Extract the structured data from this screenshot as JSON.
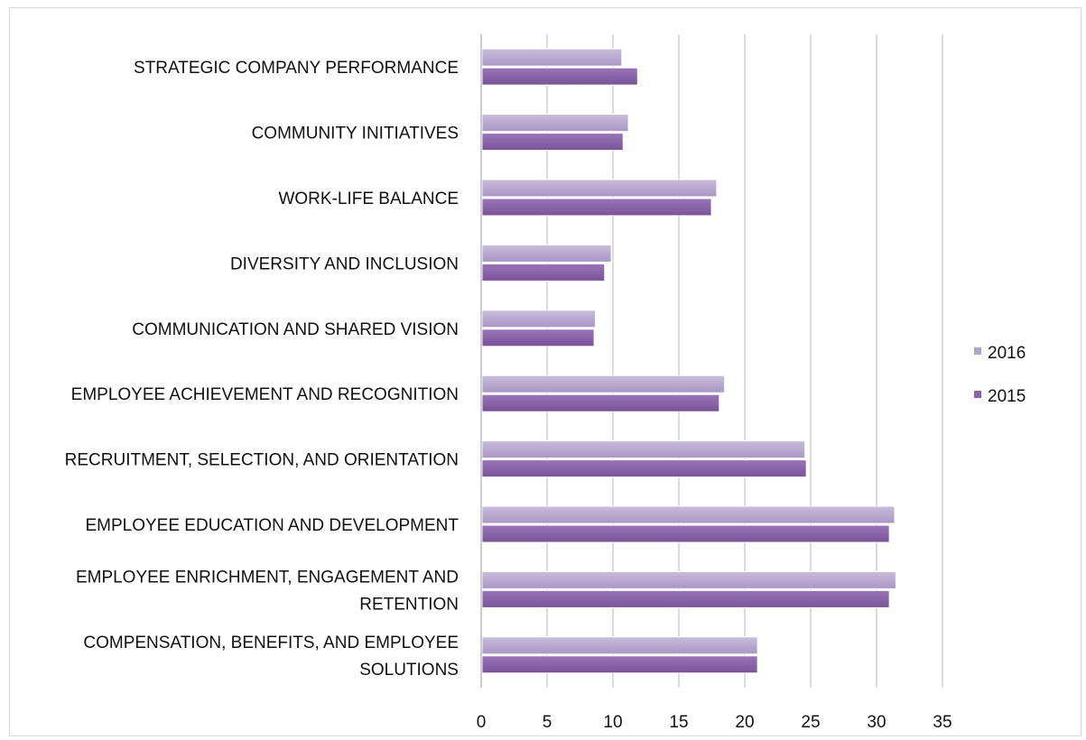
{
  "chart_data": {
    "type": "bar",
    "orientation": "horizontal",
    "categories": [
      "STRATEGIC COMPANY PERFORMANCE",
      "COMMUNITY INITIATIVES",
      "WORK-LIFE BALANCE",
      "DIVERSITY AND INCLUSION",
      "COMMUNICATION AND SHARED VISION",
      "EMPLOYEE ACHIEVEMENT AND RECOGNITION",
      "RECRUITMENT, SELECTION, AND ORIENTATION",
      "EMPLOYEE EDUCATION AND DEVELOPMENT",
      "EMPLOYEE ENRICHMENT, ENGAGEMENT AND RETENTION",
      "COMPENSATION, BENEFITS, AND EMPLOYEE SOLUTIONS"
    ],
    "series": [
      {
        "name": "2016",
        "color": "#b3a3cc",
        "values": [
          10.6,
          11.1,
          17.8,
          9.8,
          8.6,
          18.4,
          24.5,
          31.3,
          31.4,
          20.9
        ]
      },
      {
        "name": "2015",
        "color": "#8a62a8",
        "values": [
          11.8,
          10.7,
          17.4,
          9.3,
          8.5,
          18.0,
          24.6,
          30.9,
          30.9,
          20.9
        ]
      }
    ],
    "xlim": [
      0,
      35
    ],
    "xticks": [
      0,
      5,
      10,
      15,
      20,
      25,
      30,
      35
    ],
    "grid": true,
    "legend_position": "right",
    "title": "",
    "xlabel": "",
    "ylabel": ""
  }
}
